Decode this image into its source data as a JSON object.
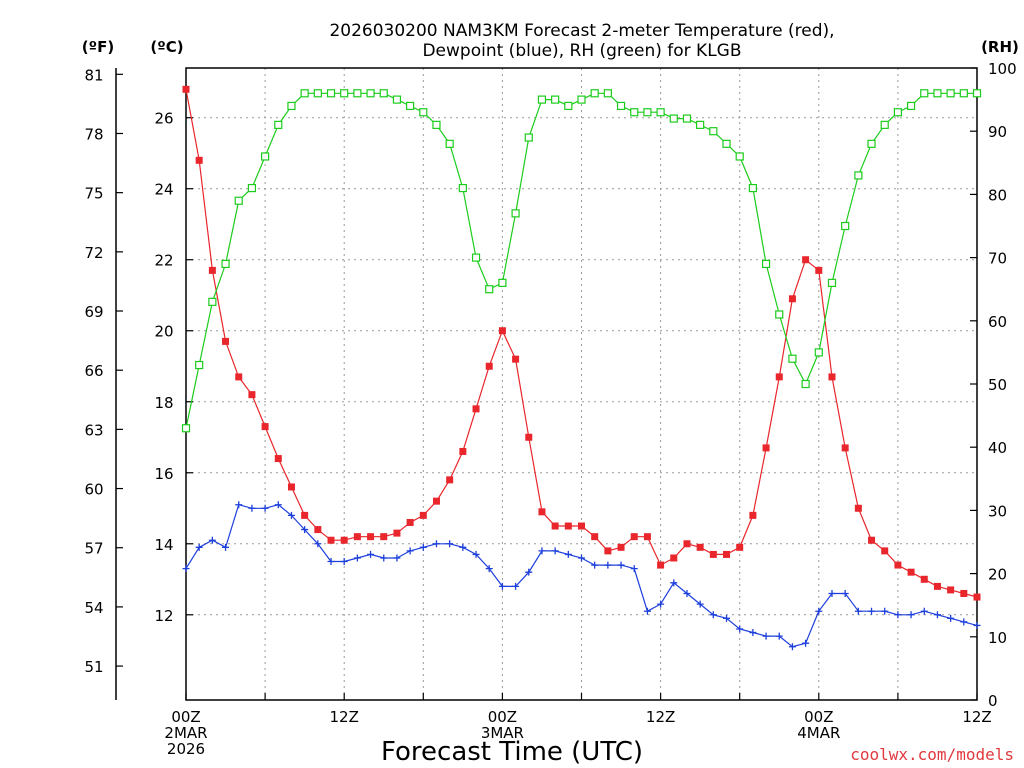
{
  "chart_data": {
    "type": "line",
    "title_line1": "2026030200 NAM3KM Forecast 2-meter Temperature (red),",
    "title_line2": "Dewpoint (blue), RH (green) for KLGB",
    "xlabel": "Forecast Time (UTC)",
    "left_outer_label": "(ºF)",
    "left_inner_label": "(ºC)",
    "right_label": "(RH)",
    "credit": "coolwx.com/models",
    "x_ticks": [
      {
        "h": 0,
        "lines": [
          "00Z",
          "2MAR",
          "2026"
        ]
      },
      {
        "h": 12,
        "lines": [
          "12Z"
        ]
      },
      {
        "h": 24,
        "lines": [
          "00Z",
          "3MAR"
        ]
      },
      {
        "h": 36,
        "lines": [
          "12Z"
        ]
      },
      {
        "h": 48,
        "lines": [
          "00Z",
          "4MAR"
        ]
      },
      {
        "h": 60,
        "lines": [
          "12Z"
        ]
      }
    ],
    "xlim": [
      0,
      60
    ],
    "c_ylim": [
      9.6,
      27.4
    ],
    "c_ticks": [
      12,
      14,
      16,
      18,
      20,
      22,
      24,
      26
    ],
    "f_ticks": [
      51,
      54,
      57,
      60,
      63,
      66,
      69,
      72,
      75,
      78,
      81
    ],
    "rh_ylim": [
      0,
      100
    ],
    "rh_ticks": [
      0,
      10,
      20,
      30,
      40,
      50,
      60,
      70,
      80,
      90,
      100
    ],
    "x_hours": [
      0,
      1,
      2,
      3,
      4,
      5,
      6,
      7,
      8,
      9,
      10,
      11,
      12,
      13,
      14,
      15,
      16,
      17,
      18,
      19,
      20,
      21,
      22,
      23,
      24,
      25,
      26,
      27,
      28,
      29,
      30,
      31,
      32,
      33,
      34,
      35,
      36,
      37,
      38,
      39,
      40,
      41,
      42,
      43,
      44,
      45,
      46,
      47,
      48,
      49,
      50,
      51,
      52,
      53,
      54,
      55,
      56,
      57,
      58,
      59,
      60
    ],
    "series": [
      {
        "name": "Temperature (°C)",
        "color": "#e8262c",
        "marker": "filled-square",
        "axis": "celsius",
        "values": [
          26.8,
          24.8,
          21.7,
          19.7,
          18.7,
          18.2,
          17.3,
          16.4,
          15.6,
          14.8,
          14.4,
          14.1,
          14.1,
          14.2,
          14.2,
          14.2,
          14.3,
          14.6,
          14.8,
          15.2,
          15.8,
          16.6,
          17.8,
          19.0,
          20.0,
          19.2,
          17.0,
          14.9,
          14.5,
          14.5,
          14.5,
          14.2,
          13.8,
          13.9,
          14.2,
          14.2,
          13.4,
          13.6,
          14.0,
          13.9,
          13.7,
          13.7,
          13.9,
          14.8,
          16.7,
          18.7,
          20.9,
          22.0,
          21.7,
          18.7,
          16.7,
          15.0,
          14.1,
          13.8,
          13.4,
          13.2,
          13.0,
          12.8,
          12.7,
          12.6,
          12.5
        ]
      },
      {
        "name": "Dewpoint (°C)",
        "color": "#1d3fdc",
        "marker": "plus",
        "axis": "celsius",
        "values": [
          13.3,
          13.9,
          14.1,
          13.9,
          15.1,
          15.0,
          15.0,
          15.1,
          14.8,
          14.4,
          14.0,
          13.5,
          13.5,
          13.6,
          13.7,
          13.6,
          13.6,
          13.8,
          13.9,
          14.0,
          14.0,
          13.9,
          13.7,
          13.3,
          12.8,
          12.8,
          13.2,
          13.8,
          13.8,
          13.7,
          13.6,
          13.4,
          13.4,
          13.4,
          13.3,
          12.1,
          12.3,
          12.9,
          12.6,
          12.3,
          12.0,
          11.9,
          11.6,
          11.5,
          11.4,
          11.4,
          11.1,
          11.2,
          12.1,
          12.6,
          12.6,
          12.1,
          12.1,
          12.1,
          12.0,
          12.0,
          12.1,
          12.0,
          11.9,
          11.8,
          11.7
        ]
      },
      {
        "name": "RH (%)",
        "color": "#1ccc1c",
        "marker": "open-square",
        "axis": "rh",
        "values": [
          43,
          53,
          63,
          69,
          79,
          81,
          86,
          91,
          94,
          96,
          96,
          96,
          96,
          96,
          96,
          96,
          95,
          94,
          93,
          91,
          88,
          81,
          70,
          65,
          66,
          77,
          89,
          95,
          95,
          94,
          95,
          96,
          96,
          94,
          93,
          93,
          93,
          92,
          92,
          91,
          90,
          88,
          86,
          81,
          69,
          61,
          54,
          50,
          55,
          66,
          75,
          83,
          88,
          91,
          93,
          94,
          96,
          96,
          96,
          96,
          96
        ]
      }
    ]
  }
}
